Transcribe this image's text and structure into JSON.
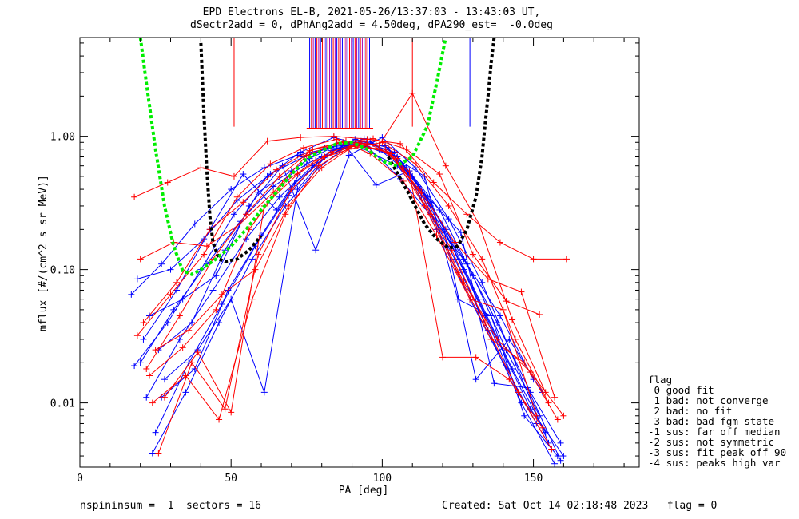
{
  "header": {
    "title_line1": "EPD Electrons EL-B, 2021-05-26/13:37:03 - 13:43:03 UT,",
    "title_line2": "dSectr2add = 0, dPhAng2add = 4.50deg, dPA290_est=  -0.0deg"
  },
  "footer": {
    "left": "nspininsum =  1  sectors = 16",
    "right": "Created: Sat Oct 14 02:18:48 2023   flag = 0"
  },
  "legend": {
    "title": "flag",
    "items": [
      " 0 good fit",
      " 1 bad: not converge",
      " 2 bad: no fit",
      " 3 bad: bad fgm state",
      "-1 sus: far off median",
      "-2 sus: not symmetric",
      "-3 sus: fit peak off 90",
      "-4 sus: peaks high var"
    ]
  },
  "chart_data": {
    "type": "line",
    "title": "EPD Electrons EL-B, 2021-05-26/13:37:03 - 13:43:03 UT,",
    "subtitle": "dSectr2add = 0, dPhAng2add = 4.50deg, dPA290_est=  -0.0deg",
    "xlabel": "PA [deg]",
    "ylabel": "mflux [#/(cm^2 s sr MeV)]",
    "xlim": [
      0,
      185
    ],
    "ylim": [
      0.0033,
      5.5
    ],
    "yscale": "log",
    "xticks": [
      "0",
      "50",
      "100",
      "150"
    ],
    "yticks": [
      "0.01",
      "0.10",
      "1.00"
    ],
    "colors": {
      "series_a": "#ff0000",
      "series_b": "#0000ff",
      "loss_cone_1": "#000000",
      "loss_cone_2": "#00ee00",
      "vertical_mid": "#aa00aa"
    },
    "series": [
      {
        "color": "#0000ff",
        "x": [
          17,
          27,
          38,
          50,
          61,
          72,
          83,
          94,
          105,
          116,
          127,
          138,
          149,
          159
        ],
        "y": [
          0.065,
          0.11,
          0.22,
          0.4,
          0.58,
          0.72,
          0.82,
          0.8,
          0.6,
          0.3,
          0.12,
          0.04,
          0.012,
          0.005
        ]
      },
      {
        "color": "#0000ff",
        "x": [
          20,
          31,
          42,
          53,
          64,
          75,
          86,
          97,
          108,
          119,
          130,
          141,
          152
        ],
        "y": [
          0.02,
          0.05,
          0.11,
          0.23,
          0.42,
          0.62,
          0.82,
          0.88,
          0.58,
          0.28,
          0.09,
          0.025,
          0.008
        ]
      },
      {
        "color": "#0000ff",
        "x": [
          22,
          33,
          44,
          55,
          66,
          77,
          88,
          99,
          110,
          121,
          132,
          143,
          154
        ],
        "y": [
          0.011,
          0.03,
          0.07,
          0.17,
          0.35,
          0.6,
          0.85,
          0.8,
          0.5,
          0.2,
          0.06,
          0.018,
          0.006
        ]
      },
      {
        "color": "#0000ff",
        "x": [
          24,
          35,
          46,
          57,
          68,
          79,
          90,
          101,
          112,
          123,
          134,
          145,
          156
        ],
        "y": [
          0.0042,
          0.012,
          0.04,
          0.12,
          0.3,
          0.58,
          0.9,
          0.85,
          0.42,
          0.15,
          0.045,
          0.012,
          0.0045
        ]
      },
      {
        "color": "#0000ff",
        "x": [
          19,
          30,
          41,
          52,
          63,
          74,
          85,
          96,
          107,
          118,
          129,
          140,
          151
        ],
        "y": [
          0.085,
          0.1,
          0.17,
          0.33,
          0.52,
          0.7,
          0.86,
          0.92,
          0.6,
          0.2,
          0.06,
          0.02,
          0.007
        ]
      },
      {
        "color": "#0000ff",
        "x": [
          25,
          36,
          47,
          58,
          69,
          80,
          91,
          102,
          113,
          124,
          135,
          146,
          157
        ],
        "y": [
          0.006,
          0.02,
          0.055,
          0.15,
          0.36,
          0.7,
          0.95,
          0.82,
          0.36,
          0.12,
          0.035,
          0.01,
          0.0035
        ]
      },
      {
        "color": "#0000ff",
        "x": [
          28,
          39,
          50,
          61,
          72,
          83,
          94,
          105,
          116,
          127,
          138,
          149,
          160
        ],
        "y": [
          0.015,
          0.025,
          0.06,
          0.012,
          0.4,
          0.78,
          0.96,
          0.7,
          0.32,
          0.1,
          0.03,
          0.009,
          0.004
        ]
      },
      {
        "color": "#0000ff",
        "x": [
          21,
          32,
          43,
          54,
          65,
          76,
          87,
          98,
          109,
          120,
          131,
          142,
          153
        ],
        "y": [
          0.03,
          0.07,
          0.2,
          0.52,
          0.28,
          0.68,
          0.9,
          0.43,
          0.55,
          0.22,
          0.015,
          0.03,
          0.012
        ]
      },
      {
        "color": "#0000ff",
        "x": [
          23,
          34,
          45,
          56,
          67,
          78,
          89,
          100,
          111,
          122,
          133,
          144,
          155
        ],
        "y": [
          0.045,
          0.06,
          0.09,
          0.3,
          0.6,
          0.14,
          0.72,
          0.98,
          0.58,
          0.24,
          0.08,
          0.02,
          0.005
        ]
      },
      {
        "color": "#0000ff",
        "x": [
          26,
          37,
          48,
          59,
          70,
          81,
          92,
          103,
          114,
          125,
          136,
          147,
          158
        ],
        "y": [
          0.025,
          0.04,
          0.14,
          0.38,
          0.55,
          0.82,
          0.88,
          0.72,
          0.5,
          0.06,
          0.045,
          0.008,
          0.004
        ]
      },
      {
        "color": "#0000ff",
        "x": [
          18,
          29,
          40,
          51,
          62,
          73,
          84,
          95,
          106,
          117,
          128,
          139,
          150
        ],
        "y": [
          0.019,
          0.04,
          0.1,
          0.26,
          0.5,
          0.76,
          0.98,
          0.84,
          0.48,
          0.24,
          0.11,
          0.045,
          0.015
        ]
      },
      {
        "color": "#0000ff",
        "x": [
          27,
          38,
          49,
          60,
          71,
          82,
          93,
          104,
          115,
          126,
          137,
          148,
          159
        ],
        "y": [
          0.011,
          0.018,
          0.07,
          0.18,
          0.44,
          0.72,
          0.92,
          0.76,
          0.35,
          0.19,
          0.014,
          0.013,
          0.0037
        ]
      },
      {
        "color": "#ff0000",
        "x": [
          18,
          29,
          40,
          51,
          62,
          73,
          84,
          95,
          106,
          117,
          128,
          139,
          150,
          161
        ],
        "y": [
          0.35,
          0.45,
          0.58,
          0.5,
          0.92,
          0.98,
          1.0,
          0.95,
          0.88,
          0.45,
          0.26,
          0.16,
          0.12,
          0.12
        ]
      },
      {
        "color": "#ff0000",
        "x": [
          20,
          31,
          42,
          53,
          64,
          75,
          86,
          97,
          108,
          119,
          130,
          141,
          152
        ],
        "y": [
          0.12,
          0.16,
          0.15,
          0.22,
          0.38,
          0.72,
          0.9,
          0.96,
          0.8,
          0.52,
          0.13,
          0.058,
          0.046
        ]
      },
      {
        "color": "#ff0000",
        "x": [
          22,
          33,
          44,
          55,
          66,
          77,
          88,
          99,
          110,
          121,
          132,
          143,
          154
        ],
        "y": [
          0.018,
          0.045,
          0.12,
          0.26,
          0.5,
          0.8,
          0.92,
          0.86,
          2.1,
          0.6,
          0.22,
          0.042,
          0.012
        ]
      },
      {
        "color": "#ff0000",
        "x": [
          24,
          35,
          46,
          57,
          68,
          79,
          90,
          101,
          112,
          123,
          134,
          145,
          156
        ],
        "y": [
          0.01,
          0.016,
          0.0075,
          0.06,
          0.26,
          0.6,
          0.84,
          0.8,
          0.4,
          0.14,
          0.04,
          0.012,
          0.0045
        ]
      },
      {
        "color": "#ff0000",
        "x": [
          21,
          32,
          43,
          54,
          65,
          76,
          87,
          98,
          109,
          120,
          131,
          142,
          153
        ],
        "y": [
          0.04,
          0.08,
          0.2,
          0.32,
          0.56,
          0.78,
          0.9,
          0.86,
          0.54,
          0.022,
          0.022,
          0.015,
          0.0065
        ]
      },
      {
        "color": "#ff0000",
        "x": [
          26,
          37,
          48,
          59,
          70,
          81,
          92,
          103,
          114,
          125,
          136,
          147,
          158
        ],
        "y": [
          0.0042,
          0.02,
          0.009,
          0.13,
          0.4,
          0.7,
          0.88,
          0.74,
          0.3,
          0.095,
          0.03,
          0.02,
          0.0075
        ]
      },
      {
        "color": "#ff0000",
        "x": [
          23,
          34,
          45,
          56,
          67,
          78,
          89,
          100,
          111,
          122,
          133,
          144,
          155
        ],
        "y": [
          0.016,
          0.026,
          0.05,
          0.2,
          0.44,
          0.66,
          0.8,
          0.9,
          0.62,
          0.3,
          0.12,
          0.03,
          0.01
        ]
      },
      {
        "color": "#ff0000",
        "x": [
          28,
          39,
          50,
          61,
          72,
          83,
          94,
          105,
          116,
          127,
          138,
          149,
          160
        ],
        "y": [
          0.011,
          0.024,
          0.0085,
          0.3,
          0.52,
          0.76,
          0.92,
          0.68,
          0.26,
          0.08,
          0.03,
          0.017,
          0.008
        ]
      },
      {
        "color": "#ff0000",
        "x": [
          19,
          30,
          41,
          52,
          63,
          74,
          85,
          96,
          107,
          118,
          129,
          140,
          151
        ],
        "y": [
          0.032,
          0.065,
          0.13,
          0.35,
          0.62,
          0.82,
          0.95,
          0.74,
          0.46,
          0.18,
          0.06,
          0.05,
          0.008
        ]
      },
      {
        "color": "#ff0000",
        "x": [
          25,
          36,
          47,
          58,
          69,
          80,
          91,
          102,
          113,
          124,
          135,
          146,
          157
        ],
        "y": [
          0.025,
          0.035,
          0.065,
          0.1,
          0.3,
          0.58,
          0.86,
          0.76,
          0.38,
          0.16,
          0.085,
          0.068,
          0.011
        ]
      },
      {
        "color": "#000000",
        "style": "dotted",
        "x": [
          40,
          41,
          42,
          43,
          44,
          46,
          48,
          52,
          56,
          60
        ],
        "y": [
          5,
          1.5,
          0.55,
          0.25,
          0.16,
          0.12,
          0.115,
          0.12,
          0.14,
          0.18
        ]
      },
      {
        "color": "#000000",
        "style": "dotted",
        "x": [
          102,
          108,
          114,
          118,
          122,
          125,
          128,
          131,
          133,
          134,
          135,
          136,
          137
        ],
        "y": [
          0.7,
          0.4,
          0.22,
          0.17,
          0.145,
          0.15,
          0.2,
          0.35,
          0.7,
          1.2,
          2,
          3.5,
          5.5
        ]
      },
      {
        "color": "#00ee00",
        "style": "dotted",
        "x": [
          20,
          22,
          25,
          28,
          31,
          34,
          37,
          40,
          45,
          50,
          55,
          60,
          65,
          70,
          75,
          80,
          85,
          90,
          95,
          100,
          105,
          110,
          115,
          118,
          121
        ],
        "y": [
          5.5,
          2.5,
          0.8,
          0.3,
          0.15,
          0.098,
          0.092,
          0.1,
          0.12,
          0.15,
          0.2,
          0.28,
          0.38,
          0.52,
          0.68,
          0.78,
          0.88,
          0.9,
          0.8,
          0.65,
          0.6,
          0.7,
          1.2,
          2.5,
          5.5
        ]
      }
    ]
  }
}
